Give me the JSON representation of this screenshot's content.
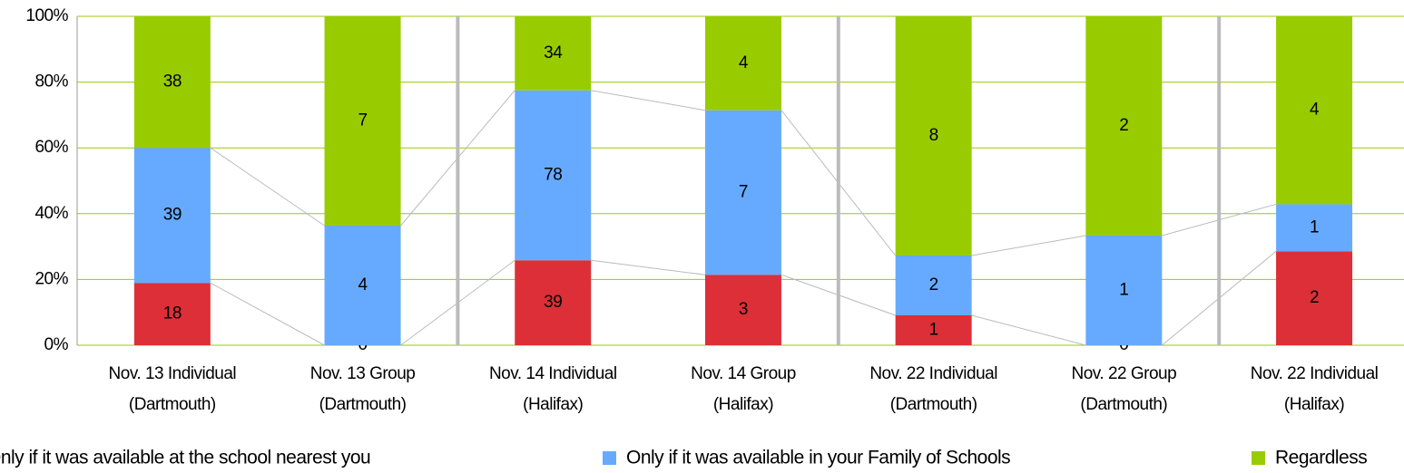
{
  "chart_data": {
    "type": "bar",
    "stacking": "percent",
    "categories": [
      [
        "Nov. 13 Individual",
        "(Dartmouth)"
      ],
      [
        "Nov. 13 Group",
        "(Dartmouth)"
      ],
      [
        "Nov. 14 Individual",
        "(Halifax)"
      ],
      [
        "Nov. 14 Group",
        "(Halifax)"
      ],
      [
        "Nov. 22 Individual",
        "(Dartmouth)"
      ],
      [
        "Nov. 22 Group",
        "(Dartmouth)"
      ],
      [
        "Nov. 22 Individual",
        "(Halifax)"
      ]
    ],
    "series": [
      {
        "name": "Only if it was available at the school nearest you",
        "color": "#dd2f37",
        "values": [
          18,
          0,
          39,
          3,
          1,
          0,
          2
        ]
      },
      {
        "name": "Only if it was available in your Family of Schools",
        "color": "#66aaff",
        "values": [
          39,
          4,
          78,
          7,
          2,
          1,
          1
        ]
      },
      {
        "name": "Regardless",
        "color": "#99cc00",
        "values": [
          38,
          7,
          34,
          4,
          8,
          2,
          4
        ]
      }
    ],
    "ylim": [
      0,
      100
    ],
    "yticks": [
      {
        "value": 0,
        "label": "0%"
      },
      {
        "value": 20,
        "label": "20%"
      },
      {
        "value": 40,
        "label": "40%"
      },
      {
        "value": 60,
        "label": "60%"
      },
      {
        "value": 80,
        "label": "80%"
      },
      {
        "value": 100,
        "label": "100%"
      }
    ],
    "grid": true,
    "legend": "bottom"
  }
}
